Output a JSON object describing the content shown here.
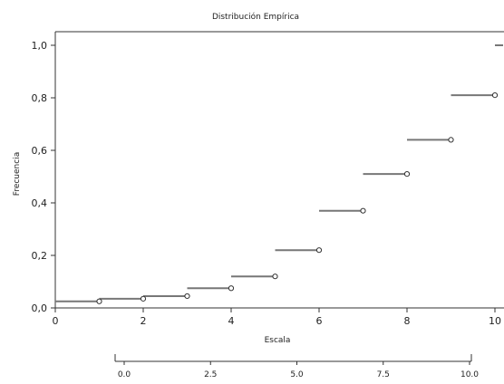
{
  "chart_data": {
    "type": "line",
    "title": "Distribución Empírica",
    "xlabel": "Escala",
    "ylabel": "Frecuencia",
    "xlim": [
      0,
      10.2
    ],
    "ylim": [
      0,
      1.05
    ],
    "x_ticks": [
      0,
      2,
      4,
      6,
      8,
      10
    ],
    "x_tick_labels": [
      "0",
      "2",
      "4",
      "6",
      "8",
      "10"
    ],
    "y_ticks": [
      0,
      0.2,
      0.4,
      0.6,
      0.8,
      1.0
    ],
    "y_tick_labels": [
      "0,0",
      "0,2",
      "0,4",
      "0,6",
      "0,8",
      "1,0"
    ],
    "grid": false,
    "steps": [
      {
        "x_start": 0.0,
        "x_end": 1.0,
        "y": 0.025
      },
      {
        "x_start": 1.0,
        "x_end": 2.0,
        "y": 0.035
      },
      {
        "x_start": 2.0,
        "x_end": 3.0,
        "y": 0.045
      },
      {
        "x_start": 3.0,
        "x_end": 4.0,
        "y": 0.075
      },
      {
        "x_start": 4.0,
        "x_end": 5.0,
        "y": 0.12
      },
      {
        "x_start": 5.0,
        "x_end": 6.0,
        "y": 0.22
      },
      {
        "x_start": 6.0,
        "x_end": 7.0,
        "y": 0.37
      },
      {
        "x_start": 7.0,
        "x_end": 8.0,
        "y": 0.51
      },
      {
        "x_start": 8.0,
        "x_end": 9.0,
        "y": 0.64
      },
      {
        "x_start": 9.0,
        "x_end": 10.0,
        "y": 0.81
      },
      {
        "x_start": 10.0,
        "x_end": 10.2,
        "y": 1.0
      }
    ],
    "open_points": [
      {
        "x": 1.0,
        "y": 0.025
      },
      {
        "x": 2.0,
        "y": 0.035
      },
      {
        "x": 3.0,
        "y": 0.045
      },
      {
        "x": 4.0,
        "y": 0.075
      },
      {
        "x": 5.0,
        "y": 0.12
      },
      {
        "x": 6.0,
        "y": 0.22
      },
      {
        "x": 7.0,
        "y": 0.37
      },
      {
        "x": 8.0,
        "y": 0.51
      },
      {
        "x": 9.0,
        "y": 0.64
      },
      {
        "x": 10.0,
        "y": 0.81
      }
    ],
    "secondary_axis": {
      "ticks": [
        0.0,
        2.5,
        5.0,
        7.5,
        10.0
      ],
      "tick_labels": [
        "0.0",
        "2.5",
        "5.0",
        "7.5",
        "10.0"
      ]
    },
    "colors": {
      "step_line": "#777777",
      "marker_stroke": "#333333",
      "axis": "#333333"
    }
  }
}
